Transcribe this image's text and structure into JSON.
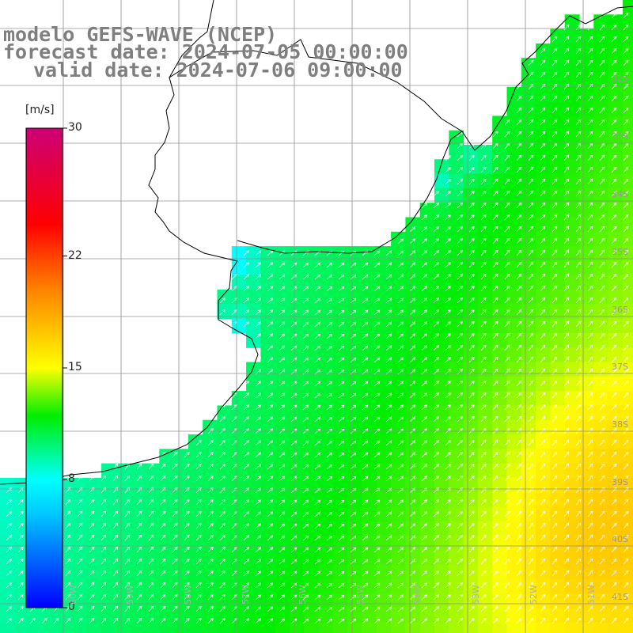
{
  "header": {
    "model_line": "modelo GEFS-WAVE (NCEP)",
    "forecast_line": "forecast date: 2024-07-05 00:00:00",
    "valid_line": "valid date: 2024-07-06 09:00:00"
  },
  "colorbar": {
    "unit": "[m/s]",
    "ticks": [
      {
        "label": "30",
        "value": 30
      },
      {
        "label": "22",
        "value": 22
      },
      {
        "label": "15",
        "value": 15
      },
      {
        "label": "8",
        "value": 8
      },
      {
        "label": "0",
        "value": 0
      }
    ],
    "stops": [
      "#0000ff",
      "#00ccff",
      "#00ffff",
      "#00ee00",
      "#ffff00",
      "#ff8000",
      "#ff0000",
      "#cc0077"
    ]
  },
  "lat_labels": [
    "32S",
    "33S",
    "34S",
    "35S",
    "36S",
    "37S",
    "38S",
    "39S",
    "40S",
    "41S"
  ],
  "lon_labels": [
    "60W",
    "59W",
    "58W",
    "57W",
    "56W",
    "55W",
    "54W",
    "53W",
    "52W",
    "51W"
  ],
  "colors": {
    "land": "#ffffff",
    "coast": "#000000",
    "grid": "#909090",
    "arrow": "#ffffff",
    "header_text": "#7f7f7f"
  },
  "field": {
    "variable": "wind speed",
    "direction": "southwest-to-northeast",
    "range_mps": [
      5,
      15
    ]
  }
}
